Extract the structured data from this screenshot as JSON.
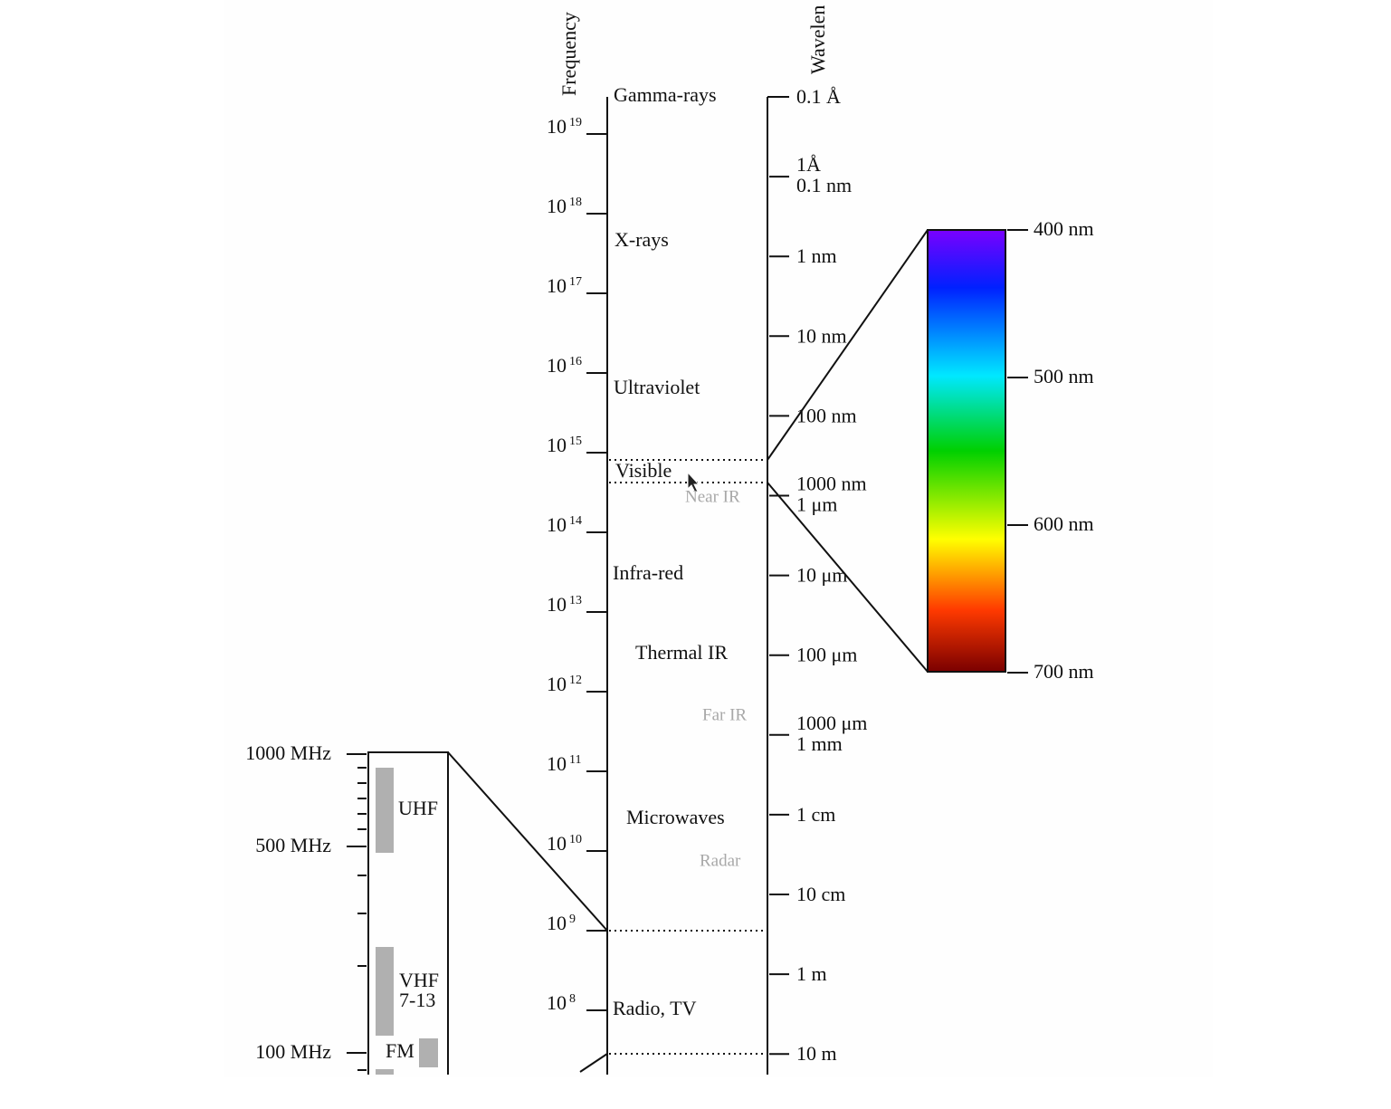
{
  "axis_titles": {
    "frequency": "Frequency",
    "wavelength": "Wavelen"
  },
  "frequency_ticks": [
    {
      "base": "10",
      "exponent": "19"
    },
    {
      "base": "10",
      "exponent": "18"
    },
    {
      "base": "10",
      "exponent": "17"
    },
    {
      "base": "10",
      "exponent": "16"
    },
    {
      "base": "10",
      "exponent": "15"
    },
    {
      "base": "10",
      "exponent": "14"
    },
    {
      "base": "10",
      "exponent": "13"
    },
    {
      "base": "10",
      "exponent": "12"
    },
    {
      "base": "10",
      "exponent": "11"
    },
    {
      "base": "10",
      "exponent": "10"
    },
    {
      "base": "10",
      "exponent": "9"
    },
    {
      "base": "10",
      "exponent": "8"
    }
  ],
  "regions": [
    "Gamma-rays",
    "X-rays",
    "Ultraviolet",
    "Visible",
    "Infra-red",
    "Thermal IR",
    "Microwaves",
    "Radio, TV"
  ],
  "subregions": [
    "Near IR",
    "Far IR",
    "Radar"
  ],
  "wavelength_ticks": [
    [
      "0.1 Å"
    ],
    [
      "1Å",
      "0.1 nm"
    ],
    [
      "1 nm"
    ],
    [
      "10 nm"
    ],
    [
      "100 nm"
    ],
    [
      "1000 nm",
      "1 μm"
    ],
    [
      "10 μm"
    ],
    [
      "100 μm"
    ],
    [
      "1000 μm",
      "1 mm"
    ],
    [
      "1 cm"
    ],
    [
      "10 cm"
    ],
    [
      "1 m"
    ],
    [
      "10 m"
    ]
  ],
  "visible_ticks": [
    "400 nm",
    "500 nm",
    "600 nm",
    "700 nm"
  ],
  "radio_ticks": [
    "1000 MHz",
    "500 MHz",
    "100 MHz"
  ],
  "radio_bands": [
    [
      "UHF"
    ],
    [
      "VHF",
      "7-13"
    ],
    [
      "FM"
    ]
  ]
}
